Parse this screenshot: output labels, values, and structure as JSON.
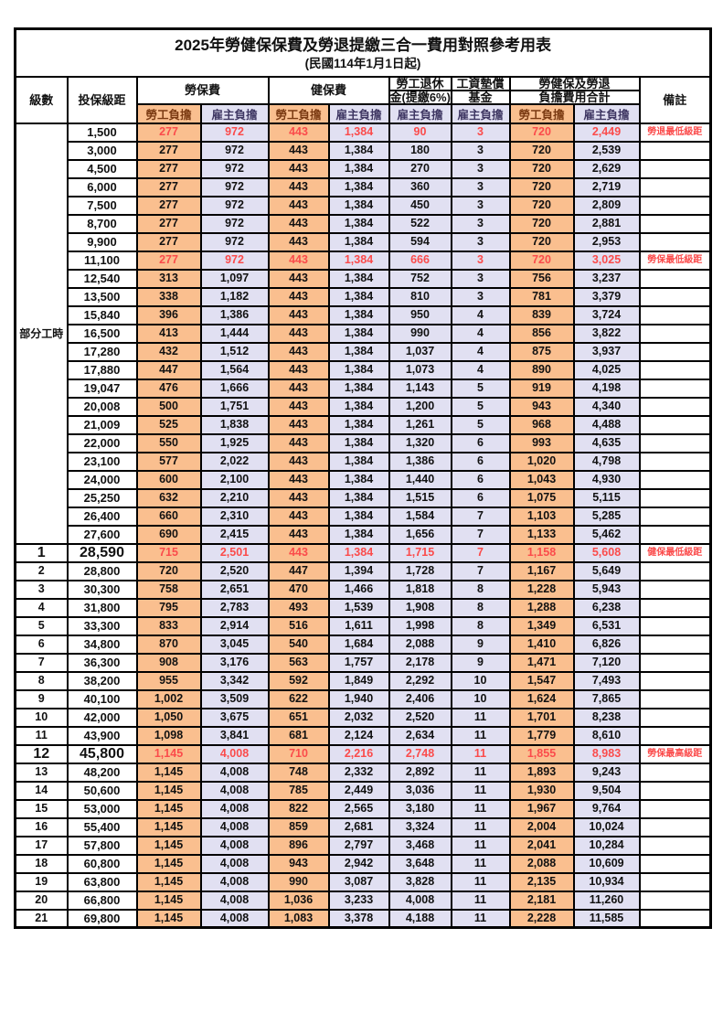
{
  "title": "2025年勞健保保費及勞退提繳三合一費用對照參考用表",
  "subtitle": "(民國114年1月1日起)",
  "labels": {
    "part_time_group": "部分工時"
  },
  "columns": {
    "level": "級數",
    "salary_bracket": "投保級距",
    "labor_insurance": "勞保費",
    "health_insurance": "健保費",
    "pension_line1": "勞工退休",
    "pension_line2": "金(提繳6%)",
    "wage_fund_line1": "工資墊償",
    "wage_fund_line2": "基金",
    "total_line1": "勞健保及勞退",
    "total_line2": "負擔費用合計",
    "employee_share": "勞工負擔",
    "employer_share": "雇主負擔",
    "remarks": "備註"
  },
  "colors": {
    "orange": "#FABF8F",
    "lav": "#E1E0F2",
    "red": "#FB4B4B",
    "emp_text": "#7B3A12",
    "er_text": "#3F3763",
    "border": "#000000"
  },
  "rows": [
    {
      "lv": "",
      "sal": "1,500",
      "a": "277",
      "b": "972",
      "c": "443",
      "d": "1,384",
      "e": "90",
      "f": "3",
      "g": "720",
      "h": "2,449",
      "note": "勞退最低級距",
      "red": true,
      "big": false
    },
    {
      "lv": "",
      "sal": "3,000",
      "a": "277",
      "b": "972",
      "c": "443",
      "d": "1,384",
      "e": "180",
      "f": "3",
      "g": "720",
      "h": "2,539",
      "note": "",
      "red": false,
      "big": false
    },
    {
      "lv": "",
      "sal": "4,500",
      "a": "277",
      "b": "972",
      "c": "443",
      "d": "1,384",
      "e": "270",
      "f": "3",
      "g": "720",
      "h": "2,629",
      "note": "",
      "red": false,
      "big": false
    },
    {
      "lv": "",
      "sal": "6,000",
      "a": "277",
      "b": "972",
      "c": "443",
      "d": "1,384",
      "e": "360",
      "f": "3",
      "g": "720",
      "h": "2,719",
      "note": "",
      "red": false,
      "big": false
    },
    {
      "lv": "",
      "sal": "7,500",
      "a": "277",
      "b": "972",
      "c": "443",
      "d": "1,384",
      "e": "450",
      "f": "3",
      "g": "720",
      "h": "2,809",
      "note": "",
      "red": false,
      "big": false
    },
    {
      "lv": "",
      "sal": "8,700",
      "a": "277",
      "b": "972",
      "c": "443",
      "d": "1,384",
      "e": "522",
      "f": "3",
      "g": "720",
      "h": "2,881",
      "note": "",
      "red": false,
      "big": false
    },
    {
      "lv": "",
      "sal": "9,900",
      "a": "277",
      "b": "972",
      "c": "443",
      "d": "1,384",
      "e": "594",
      "f": "3",
      "g": "720",
      "h": "2,953",
      "note": "",
      "red": false,
      "big": false
    },
    {
      "lv": "",
      "sal": "11,100",
      "a": "277",
      "b": "972",
      "c": "443",
      "d": "1,384",
      "e": "666",
      "f": "3",
      "g": "720",
      "h": "3,025",
      "note": "勞保最低級距",
      "red": true,
      "big": false
    },
    {
      "lv": "",
      "sal": "12,540",
      "a": "313",
      "b": "1,097",
      "c": "443",
      "d": "1,384",
      "e": "752",
      "f": "3",
      "g": "756",
      "h": "3,237",
      "note": "",
      "red": false,
      "big": false
    },
    {
      "lv": "",
      "sal": "13,500",
      "a": "338",
      "b": "1,182",
      "c": "443",
      "d": "1,384",
      "e": "810",
      "f": "3",
      "g": "781",
      "h": "3,379",
      "note": "",
      "red": false,
      "big": false
    },
    {
      "lv": "",
      "sal": "15,840",
      "a": "396",
      "b": "1,386",
      "c": "443",
      "d": "1,384",
      "e": "950",
      "f": "4",
      "g": "839",
      "h": "3,724",
      "note": "",
      "red": false,
      "big": false
    },
    {
      "lv": "",
      "sal": "16,500",
      "a": "413",
      "b": "1,444",
      "c": "443",
      "d": "1,384",
      "e": "990",
      "f": "4",
      "g": "856",
      "h": "3,822",
      "note": "",
      "red": false,
      "big": false
    },
    {
      "lv": "",
      "sal": "17,280",
      "a": "432",
      "b": "1,512",
      "c": "443",
      "d": "1,384",
      "e": "1,037",
      "f": "4",
      "g": "875",
      "h": "3,937",
      "note": "",
      "red": false,
      "big": false
    },
    {
      "lv": "",
      "sal": "17,880",
      "a": "447",
      "b": "1,564",
      "c": "443",
      "d": "1,384",
      "e": "1,073",
      "f": "4",
      "g": "890",
      "h": "4,025",
      "note": "",
      "red": false,
      "big": false
    },
    {
      "lv": "",
      "sal": "19,047",
      "a": "476",
      "b": "1,666",
      "c": "443",
      "d": "1,384",
      "e": "1,143",
      "f": "5",
      "g": "919",
      "h": "4,198",
      "note": "",
      "red": false,
      "big": false
    },
    {
      "lv": "",
      "sal": "20,008",
      "a": "500",
      "b": "1,751",
      "c": "443",
      "d": "1,384",
      "e": "1,200",
      "f": "5",
      "g": "943",
      "h": "4,340",
      "note": "",
      "red": false,
      "big": false
    },
    {
      "lv": "",
      "sal": "21,009",
      "a": "525",
      "b": "1,838",
      "c": "443",
      "d": "1,384",
      "e": "1,261",
      "f": "5",
      "g": "968",
      "h": "4,488",
      "note": "",
      "red": false,
      "big": false
    },
    {
      "lv": "",
      "sal": "22,000",
      "a": "550",
      "b": "1,925",
      "c": "443",
      "d": "1,384",
      "e": "1,320",
      "f": "6",
      "g": "993",
      "h": "4,635",
      "note": "",
      "red": false,
      "big": false
    },
    {
      "lv": "",
      "sal": "23,100",
      "a": "577",
      "b": "2,022",
      "c": "443",
      "d": "1,384",
      "e": "1,386",
      "f": "6",
      "g": "1,020",
      "h": "4,798",
      "note": "",
      "red": false,
      "big": false
    },
    {
      "lv": "",
      "sal": "24,000",
      "a": "600",
      "b": "2,100",
      "c": "443",
      "d": "1,384",
      "e": "1,440",
      "f": "6",
      "g": "1,043",
      "h": "4,930",
      "note": "",
      "red": false,
      "big": false
    },
    {
      "lv": "",
      "sal": "25,250",
      "a": "632",
      "b": "2,210",
      "c": "443",
      "d": "1,384",
      "e": "1,515",
      "f": "6",
      "g": "1,075",
      "h": "5,115",
      "note": "",
      "red": false,
      "big": false
    },
    {
      "lv": "",
      "sal": "26,400",
      "a": "660",
      "b": "2,310",
      "c": "443",
      "d": "1,384",
      "e": "1,584",
      "f": "7",
      "g": "1,103",
      "h": "5,285",
      "note": "",
      "red": false,
      "big": false
    },
    {
      "lv": "",
      "sal": "27,600",
      "a": "690",
      "b": "2,415",
      "c": "443",
      "d": "1,384",
      "e": "1,656",
      "f": "7",
      "g": "1,133",
      "h": "5,462",
      "note": "",
      "red": false,
      "big": false
    },
    {
      "lv": "1",
      "sal": "28,590",
      "a": "715",
      "b": "2,501",
      "c": "443",
      "d": "1,384",
      "e": "1,715",
      "f": "7",
      "g": "1,158",
      "h": "5,608",
      "note": "健保最低級距",
      "red": true,
      "big": true
    },
    {
      "lv": "2",
      "sal": "28,800",
      "a": "720",
      "b": "2,520",
      "c": "447",
      "d": "1,394",
      "e": "1,728",
      "f": "7",
      "g": "1,167",
      "h": "5,649",
      "note": "",
      "red": false,
      "big": false
    },
    {
      "lv": "3",
      "sal": "30,300",
      "a": "758",
      "b": "2,651",
      "c": "470",
      "d": "1,466",
      "e": "1,818",
      "f": "8",
      "g": "1,228",
      "h": "5,943",
      "note": "",
      "red": false,
      "big": false
    },
    {
      "lv": "4",
      "sal": "31,800",
      "a": "795",
      "b": "2,783",
      "c": "493",
      "d": "1,539",
      "e": "1,908",
      "f": "8",
      "g": "1,288",
      "h": "6,238",
      "note": "",
      "red": false,
      "big": false
    },
    {
      "lv": "5",
      "sal": "33,300",
      "a": "833",
      "b": "2,914",
      "c": "516",
      "d": "1,611",
      "e": "1,998",
      "f": "8",
      "g": "1,349",
      "h": "6,531",
      "note": "",
      "red": false,
      "big": false
    },
    {
      "lv": "6",
      "sal": "34,800",
      "a": "870",
      "b": "3,045",
      "c": "540",
      "d": "1,684",
      "e": "2,088",
      "f": "9",
      "g": "1,410",
      "h": "6,826",
      "note": "",
      "red": false,
      "big": false
    },
    {
      "lv": "7",
      "sal": "36,300",
      "a": "908",
      "b": "3,176",
      "c": "563",
      "d": "1,757",
      "e": "2,178",
      "f": "9",
      "g": "1,471",
      "h": "7,120",
      "note": "",
      "red": false,
      "big": false
    },
    {
      "lv": "8",
      "sal": "38,200",
      "a": "955",
      "b": "3,342",
      "c": "592",
      "d": "1,849",
      "e": "2,292",
      "f": "10",
      "g": "1,547",
      "h": "7,493",
      "note": "",
      "red": false,
      "big": false
    },
    {
      "lv": "9",
      "sal": "40,100",
      "a": "1,002",
      "b": "3,509",
      "c": "622",
      "d": "1,940",
      "e": "2,406",
      "f": "10",
      "g": "1,624",
      "h": "7,865",
      "note": "",
      "red": false,
      "big": false
    },
    {
      "lv": "10",
      "sal": "42,000",
      "a": "1,050",
      "b": "3,675",
      "c": "651",
      "d": "2,032",
      "e": "2,520",
      "f": "11",
      "g": "1,701",
      "h": "8,238",
      "note": "",
      "red": false,
      "big": false
    },
    {
      "lv": "11",
      "sal": "43,900",
      "a": "1,098",
      "b": "3,841",
      "c": "681",
      "d": "2,124",
      "e": "2,634",
      "f": "11",
      "g": "1,779",
      "h": "8,610",
      "note": "",
      "red": false,
      "big": false
    },
    {
      "lv": "12",
      "sal": "45,800",
      "a": "1,145",
      "b": "4,008",
      "c": "710",
      "d": "2,216",
      "e": "2,748",
      "f": "11",
      "g": "1,855",
      "h": "8,983",
      "note": "勞保最高級距",
      "red": true,
      "big": true
    },
    {
      "lv": "13",
      "sal": "48,200",
      "a": "1,145",
      "b": "4,008",
      "c": "748",
      "d": "2,332",
      "e": "2,892",
      "f": "11",
      "g": "1,893",
      "h": "9,243",
      "note": "",
      "red": false,
      "big": false
    },
    {
      "lv": "14",
      "sal": "50,600",
      "a": "1,145",
      "b": "4,008",
      "c": "785",
      "d": "2,449",
      "e": "3,036",
      "f": "11",
      "g": "1,930",
      "h": "9,504",
      "note": "",
      "red": false,
      "big": false
    },
    {
      "lv": "15",
      "sal": "53,000",
      "a": "1,145",
      "b": "4,008",
      "c": "822",
      "d": "2,565",
      "e": "3,180",
      "f": "11",
      "g": "1,967",
      "h": "9,764",
      "note": "",
      "red": false,
      "big": false
    },
    {
      "lv": "16",
      "sal": "55,400",
      "a": "1,145",
      "b": "4,008",
      "c": "859",
      "d": "2,681",
      "e": "3,324",
      "f": "11",
      "g": "2,004",
      "h": "10,024",
      "note": "",
      "red": false,
      "big": false
    },
    {
      "lv": "17",
      "sal": "57,800",
      "a": "1,145",
      "b": "4,008",
      "c": "896",
      "d": "2,797",
      "e": "3,468",
      "f": "11",
      "g": "2,041",
      "h": "10,284",
      "note": "",
      "red": false,
      "big": false
    },
    {
      "lv": "18",
      "sal": "60,800",
      "a": "1,145",
      "b": "4,008",
      "c": "943",
      "d": "2,942",
      "e": "3,648",
      "f": "11",
      "g": "2,088",
      "h": "10,609",
      "note": "",
      "red": false,
      "big": false
    },
    {
      "lv": "19",
      "sal": "63,800",
      "a": "1,145",
      "b": "4,008",
      "c": "990",
      "d": "3,087",
      "e": "3,828",
      "f": "11",
      "g": "2,135",
      "h": "10,934",
      "note": "",
      "red": false,
      "big": false
    },
    {
      "lv": "20",
      "sal": "66,800",
      "a": "1,145",
      "b": "4,008",
      "c": "1,036",
      "d": "3,233",
      "e": "4,008",
      "f": "11",
      "g": "2,181",
      "h": "11,260",
      "note": "",
      "red": false,
      "big": false
    },
    {
      "lv": "21",
      "sal": "69,800",
      "a": "1,145",
      "b": "4,008",
      "c": "1,083",
      "d": "3,378",
      "e": "4,188",
      "f": "11",
      "g": "2,228",
      "h": "11,585",
      "note": "",
      "red": false,
      "big": false
    }
  ]
}
